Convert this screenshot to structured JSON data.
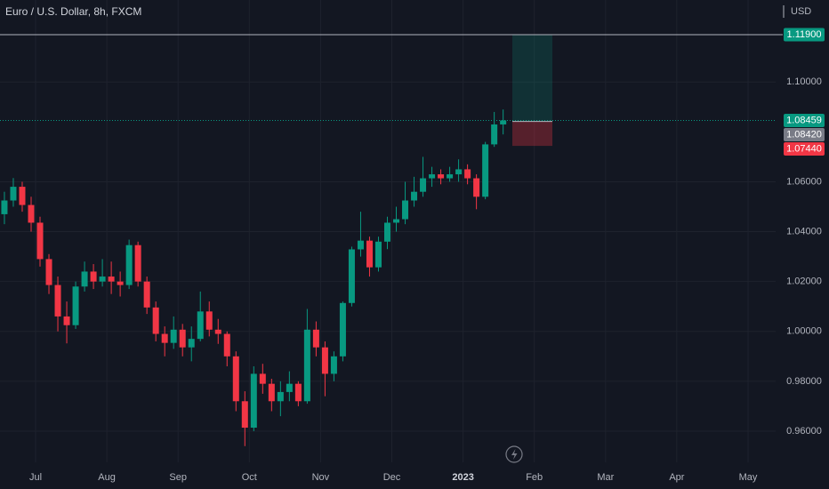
{
  "chart_data": {
    "type": "candlestick",
    "title": "Euro / U.S. Dollar, 8h, FXCM",
    "currency": "USD",
    "categories": [
      null,
      "Jul",
      "Aug",
      "Sep",
      "Oct",
      "Nov",
      "Dec",
      "2023",
      "Feb",
      "Mar",
      "Apr",
      "May"
    ],
    "open": [
      [
        1.047,
        1.0525,
        1.058,
        1.0507
      ],
      [
        1.0436,
        1.029,
        1.0186,
        1.006,
        1.0025,
        1.018,
        1.024,
        1.02
      ],
      [
        1.022,
        1.02,
        1.0186,
        1.0346,
        1.02,
        1.0096,
        0.999,
        0.9954
      ],
      [
        1.0007,
        0.9936,
        0.997,
        1.008,
        1.0007,
        0.999,
        0.99,
        0.972
      ],
      [
        0.9614,
        0.983,
        0.979,
        0.972,
        0.9757,
        0.979,
        0.972,
        1.0007
      ],
      [
        0.9936,
        0.983,
        0.99,
        1.0114,
        1.0329,
        1.0364,
        1.0257,
        1.036
      ],
      [
        1.0436,
        1.045,
        1.0525,
        1.056,
        1.0614,
        1.063,
        1.0614,
        1.063
      ],
      [
        1.065,
        1.0614,
        1.054,
        1.075,
        1.083
      ],
      [],
      [],
      [],
      []
    ],
    "high": [
      [
        1.056,
        1.0615,
        1.06,
        1.054
      ],
      [
        1.046,
        1.031,
        1.022,
        1.012,
        1.02,
        1.028,
        1.027,
        1.029
      ],
      [
        1.028,
        1.024,
        1.0368,
        1.036,
        1.022,
        1.012,
        1.002,
        1.006
      ],
      [
        1.003,
        1.002,
        1.016,
        1.012,
        1.005,
        1.0,
        0.992,
        0.976
      ],
      [
        0.986,
        0.987,
        0.981,
        0.98,
        0.984,
        0.98,
        1.009,
        1.004
      ],
      [
        0.996,
        0.992,
        1.012,
        1.034,
        1.048,
        1.038,
        1.038,
        1.046
      ],
      [
        1.05,
        1.06,
        1.062,
        1.07,
        1.066,
        1.065,
        1.066,
        1.069
      ],
      [
        1.067,
        1.063,
        1.076,
        1.088,
        1.089
      ],
      [],
      [],
      [],
      []
    ],
    "low": [
      [
        1.043,
        1.05,
        1.048,
        1.04
      ],
      [
        1.026,
        1.015,
        1.0,
        0.9952,
        1.001,
        1.016,
        1.017,
        1.018
      ],
      [
        1.015,
        1.014,
        1.017,
        1.018,
        1.007,
        0.996,
        0.99,
        0.993
      ],
      [
        0.99,
        0.988,
        0.996,
        0.998,
        0.995,
        0.986,
        0.968,
        0.954
      ],
      [
        0.96,
        0.975,
        0.968,
        0.966,
        0.972,
        0.97,
        0.971,
        0.99
      ],
      [
        0.974,
        0.98,
        0.988,
        1.01,
        1.03,
        1.022,
        1.024,
        1.033
      ],
      [
        1.04,
        1.043,
        1.05,
        1.054,
        1.058,
        1.059,
        1.06,
        1.06
      ],
      [
        1.059,
        1.049,
        1.053,
        1.074,
        1.079
      ],
      [],
      [],
      [],
      []
    ],
    "close": [
      [
        1.0525,
        1.058,
        1.0507,
        1.0436
      ],
      [
        1.029,
        1.0186,
        1.006,
        1.0025,
        1.018,
        1.024,
        1.02,
        1.022
      ],
      [
        1.02,
        1.0186,
        1.0346,
        1.02,
        1.0096,
        0.999,
        0.9954,
        1.0007
      ],
      [
        0.9936,
        0.997,
        1.008,
        1.0007,
        0.999,
        0.99,
        0.972,
        0.9614
      ],
      [
        0.983,
        0.979,
        0.972,
        0.9757,
        0.979,
        0.972,
        1.0007,
        0.9936
      ],
      [
        0.983,
        0.99,
        1.0114,
        1.0329,
        1.0364,
        1.0257,
        1.036,
        1.0436
      ],
      [
        1.045,
        1.0525,
        1.056,
        1.0614,
        1.063,
        1.0614,
        1.063,
        1.065
      ],
      [
        1.0614,
        1.054,
        1.075,
        1.083,
        1.0846
      ],
      [],
      [],
      [],
      []
    ],
    "up_color": "#089981",
    "down_color": "#f23645",
    "ylim": [
      0.9475,
      1.1329
    ],
    "yticks": [
      {
        "value": 0.96,
        "label": "0.96000"
      },
      {
        "value": 0.98,
        "label": "0.98000"
      },
      {
        "value": 1.0,
        "label": "1.00000"
      },
      {
        "value": 1.02,
        "label": "1.02000"
      },
      {
        "value": 1.04,
        "label": "1.04000"
      },
      {
        "value": 1.06,
        "label": "1.06000"
      },
      {
        "value": 1.1,
        "label": "1.10000"
      }
    ],
    "price_labels": [
      {
        "value": 1.119,
        "label": "1.11900",
        "color": "#089981"
      },
      {
        "value": 1.08459,
        "label": "1.08459",
        "color": "#089981"
      },
      {
        "value": 1.0842,
        "label": "1.08420",
        "color": "#787b86"
      },
      {
        "value": 1.0744,
        "label": "1.07440",
        "color": "#f23645"
      }
    ],
    "grid": true
  }
}
